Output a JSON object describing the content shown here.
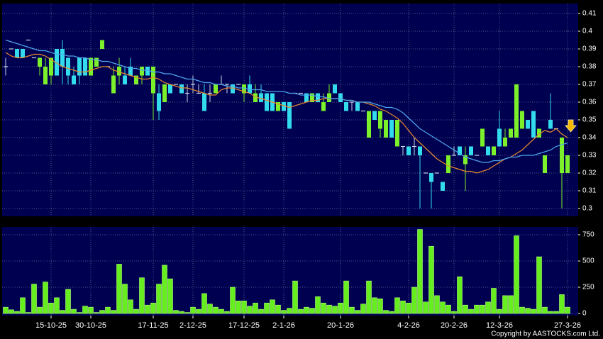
{
  "chart_data": [
    {
      "type": "candlestick",
      "up_color": "#7cf02a",
      "down_color": "#33dcec",
      "doji_color": "#c8d8e8",
      "open": [
        0.38,
        0.39,
        0.39,
        0.39,
        0.395,
        0.385,
        0.38,
        0.37,
        0.375,
        0.39,
        0.39,
        0.385,
        0.375,
        0.385,
        0.385,
        0.375,
        0.38,
        0.39,
        0.38,
        0.365,
        0.375,
        0.375,
        0.38,
        0.37,
        0.375,
        0.38,
        0.365,
        0.365,
        0.36,
        0.37,
        0.37,
        0.37,
        0.365,
        0.37,
        0.365,
        0.365,
        0.365,
        0.365,
        0.37,
        0.37,
        0.37,
        0.37,
        0.365,
        0.37,
        0.36,
        0.365,
        0.365,
        0.365,
        0.355,
        0.36,
        0.36,
        0.365,
        0.365,
        0.365,
        0.36,
        0.365,
        0.355,
        0.36,
        0.37,
        0.365,
        0.36,
        0.36,
        0.36,
        0.355,
        0.34,
        0.355,
        0.345,
        0.34,
        0.35,
        0.335,
        0.335,
        0.335,
        0.335,
        0.335,
        0.32,
        0.32,
        0.32,
        0.315,
        0.32,
        0.33,
        0.335,
        0.325,
        0.335,
        0.33,
        0.335,
        0.335,
        0.33,
        0.345,
        0.335,
        0.34,
        0.34,
        0.345,
        0.35,
        0.355,
        0.34,
        0.32,
        0.35,
        0.345,
        0.32,
        0.32
      ],
      "high": [
        0.385,
        0.39,
        0.39,
        0.39,
        0.395,
        0.385,
        0.385,
        0.385,
        0.385,
        0.39,
        0.395,
        0.385,
        0.38,
        0.385,
        0.385,
        0.385,
        0.385,
        0.395,
        0.38,
        0.38,
        0.385,
        0.38,
        0.385,
        0.375,
        0.38,
        0.38,
        0.38,
        0.37,
        0.37,
        0.37,
        0.37,
        0.37,
        0.37,
        0.375,
        0.37,
        0.37,
        0.37,
        0.37,
        0.375,
        0.37,
        0.37,
        0.37,
        0.37,
        0.375,
        0.37,
        0.37,
        0.365,
        0.365,
        0.36,
        0.36,
        0.36,
        0.365,
        0.365,
        0.365,
        0.365,
        0.365,
        0.365,
        0.37,
        0.37,
        0.365,
        0.36,
        0.36,
        0.36,
        0.355,
        0.355,
        0.355,
        0.355,
        0.35,
        0.35,
        0.35,
        0.335,
        0.335,
        0.34,
        0.335,
        0.32,
        0.32,
        0.32,
        0.315,
        0.33,
        0.335,
        0.335,
        0.335,
        0.335,
        0.33,
        0.345,
        0.335,
        0.335,
        0.355,
        0.345,
        0.345,
        0.37,
        0.355,
        0.35,
        0.355,
        0.345,
        0.33,
        0.365,
        0.345,
        0.34,
        0.33
      ],
      "low": [
        0.375,
        0.39,
        0.385,
        0.385,
        0.395,
        0.385,
        0.375,
        0.37,
        0.37,
        0.375,
        0.37,
        0.37,
        0.37,
        0.37,
        0.375,
        0.375,
        0.38,
        0.39,
        0.38,
        0.365,
        0.37,
        0.37,
        0.375,
        0.37,
        0.37,
        0.375,
        0.35,
        0.35,
        0.36,
        0.365,
        0.37,
        0.365,
        0.36,
        0.365,
        0.365,
        0.355,
        0.36,
        0.365,
        0.37,
        0.365,
        0.365,
        0.37,
        0.36,
        0.365,
        0.36,
        0.36,
        0.355,
        0.355,
        0.355,
        0.355,
        0.345,
        0.365,
        0.365,
        0.36,
        0.36,
        0.36,
        0.355,
        0.36,
        0.365,
        0.36,
        0.355,
        0.355,
        0.355,
        0.355,
        0.34,
        0.35,
        0.34,
        0.34,
        0.34,
        0.335,
        0.33,
        0.33,
        0.33,
        0.3,
        0.32,
        0.3,
        0.32,
        0.31,
        0.32,
        0.33,
        0.33,
        0.31,
        0.33,
        0.33,
        0.335,
        0.33,
        0.33,
        0.335,
        0.335,
        0.34,
        0.34,
        0.345,
        0.345,
        0.34,
        0.34,
        0.32,
        0.345,
        0.345,
        0.3,
        0.32
      ],
      "close": [
        0.38,
        0.39,
        0.385,
        0.385,
        0.395,
        0.385,
        0.385,
        0.38,
        0.385,
        0.375,
        0.38,
        0.375,
        0.37,
        0.375,
        0.375,
        0.385,
        0.385,
        0.395,
        0.38,
        0.375,
        0.38,
        0.37,
        0.375,
        0.375,
        0.38,
        0.375,
        0.38,
        0.355,
        0.37,
        0.365,
        0.37,
        0.365,
        0.365,
        0.37,
        0.365,
        0.355,
        0.365,
        0.37,
        0.37,
        0.37,
        0.365,
        0.37,
        0.37,
        0.365,
        0.365,
        0.36,
        0.355,
        0.355,
        0.36,
        0.355,
        0.345,
        0.365,
        0.365,
        0.36,
        0.365,
        0.36,
        0.36,
        0.365,
        0.365,
        0.36,
        0.355,
        0.36,
        0.355,
        0.355,
        0.355,
        0.35,
        0.355,
        0.35,
        0.34,
        0.35,
        0.335,
        0.33,
        0.335,
        0.33,
        0.32,
        0.315,
        0.32,
        0.31,
        0.33,
        0.33,
        0.33,
        0.33,
        0.33,
        0.33,
        0.345,
        0.33,
        0.335,
        0.335,
        0.34,
        0.345,
        0.37,
        0.355,
        0.345,
        0.34,
        0.345,
        0.33,
        0.345,
        0.345,
        0.34,
        0.33
      ],
      "overlays": [
        {
          "color": "#e8892e",
          "values": [
            0.388,
            0.386,
            0.385,
            0.385,
            0.386,
            0.387,
            0.387,
            0.386,
            0.384,
            0.382,
            0.38,
            0.379,
            0.378,
            0.377,
            0.377,
            0.378,
            0.379,
            0.38,
            0.38,
            0.378,
            0.377,
            0.376,
            0.375,
            0.374,
            0.373,
            0.373,
            0.374,
            0.373,
            0.371,
            0.37,
            0.369,
            0.368,
            0.368,
            0.367,
            0.366,
            0.365,
            0.364,
            0.364,
            0.367,
            0.368,
            0.368,
            0.367,
            0.366,
            0.365,
            0.363,
            0.362,
            0.361,
            0.36,
            0.359,
            0.358,
            0.357,
            0.358,
            0.359,
            0.36,
            0.361,
            0.361,
            0.362,
            0.362,
            0.362,
            0.362,
            0.361,
            0.361,
            0.36,
            0.36,
            0.359,
            0.358,
            0.356,
            0.355,
            0.353,
            0.351,
            0.348,
            0.344,
            0.34,
            0.337,
            0.334,
            0.331,
            0.328,
            0.326,
            0.324,
            0.323,
            0.322,
            0.321,
            0.321,
            0.32,
            0.321,
            0.322,
            0.324,
            0.326,
            0.328,
            0.329,
            0.331,
            0.333,
            0.336,
            0.339,
            0.342,
            0.344,
            0.343,
            0.345,
            0.342,
            0.34
          ]
        },
        {
          "color": "#4ea6ee",
          "values": [
            0.395,
            0.394,
            0.393,
            0.392,
            0.391,
            0.39,
            0.389,
            0.389,
            0.388,
            0.387,
            0.387,
            0.386,
            0.386,
            0.385,
            0.385,
            0.384,
            0.384,
            0.383,
            0.383,
            0.382,
            0.381,
            0.38,
            0.379,
            0.379,
            0.378,
            0.378,
            0.377,
            0.377,
            0.376,
            0.376,
            0.375,
            0.374,
            0.373,
            0.373,
            0.372,
            0.371,
            0.371,
            0.37,
            0.37,
            0.369,
            0.369,
            0.368,
            0.368,
            0.367,
            0.367,
            0.367,
            0.366,
            0.366,
            0.366,
            0.366,
            0.365,
            0.365,
            0.364,
            0.364,
            0.364,
            0.363,
            0.363,
            0.362,
            0.362,
            0.362,
            0.361,
            0.361,
            0.36,
            0.36,
            0.36,
            0.359,
            0.358,
            0.357,
            0.357,
            0.356,
            0.354,
            0.351,
            0.348,
            0.345,
            0.343,
            0.341,
            0.339,
            0.337,
            0.335,
            0.333,
            0.331,
            0.329,
            0.328,
            0.327,
            0.326,
            0.326,
            0.327,
            0.327,
            0.328,
            0.329,
            0.329,
            0.33,
            0.33,
            0.33,
            0.331,
            0.332,
            0.333,
            0.335,
            0.336,
            0.337
          ]
        }
      ],
      "ylim": [
        0.2956,
        0.4156
      ],
      "yticks": [
        0.3,
        0.31,
        0.32,
        0.33,
        0.34,
        0.35,
        0.36,
        0.37,
        0.38,
        0.39,
        0.4,
        0.41
      ],
      "grid": true
    },
    {
      "type": "bar",
      "color": "#66ee1e",
      "categories": [
        null,
        null,
        null,
        null,
        null,
        null,
        null,
        null,
        "15-10-25",
        null,
        null,
        null,
        null,
        null,
        null,
        "30-10-25",
        null,
        null,
        null,
        null,
        null,
        null,
        null,
        null,
        null,
        null,
        "17-11-25",
        null,
        null,
        null,
        null,
        null,
        null,
        "2-12-25",
        null,
        null,
        null,
        null,
        null,
        null,
        null,
        null,
        "17-12-25",
        null,
        null,
        null,
        null,
        null,
        null,
        "2-1-26",
        null,
        null,
        null,
        null,
        null,
        null,
        null,
        null,
        null,
        "20-1-26",
        null,
        null,
        null,
        null,
        null,
        null,
        null,
        null,
        null,
        null,
        null,
        "4-2-26",
        null,
        null,
        null,
        null,
        null,
        null,
        null,
        "20-2-26",
        null,
        null,
        null,
        null,
        null,
        null,
        null,
        "12-3-26",
        null,
        null,
        null,
        null,
        null,
        null,
        null,
        null,
        null,
        null,
        null,
        "27-3-26"
      ],
      "values": [
        60,
        35,
        20,
        150,
        10,
        280,
        60,
        300,
        100,
        150,
        30,
        230,
        40,
        10,
        70,
        60,
        10,
        30,
        60,
        30,
        470,
        280,
        130,
        40,
        340,
        80,
        100,
        280,
        460,
        330,
        30,
        20,
        10,
        60,
        40,
        190,
        90,
        60,
        40,
        20,
        250,
        120,
        120,
        70,
        100,
        40,
        100,
        130,
        80,
        30,
        50,
        310,
        40,
        60,
        50,
        160,
        100,
        80,
        70,
        100,
        310,
        60,
        30,
        90,
        310,
        150,
        140,
        30,
        20,
        150,
        120,
        100,
        250,
        800,
        110,
        640,
        170,
        110,
        80,
        20,
        350,
        80,
        40,
        80,
        80,
        110,
        240,
        40,
        170,
        170,
        740,
        60,
        50,
        40,
        540,
        60,
        20,
        20,
        180,
        60
      ],
      "ylim": [
        -20,
        824
      ],
      "yticks": [
        0,
        250,
        500,
        750
      ],
      "grid": true
    }
  ],
  "copyright": "Copyright by AASTOCKS.com Ltd."
}
